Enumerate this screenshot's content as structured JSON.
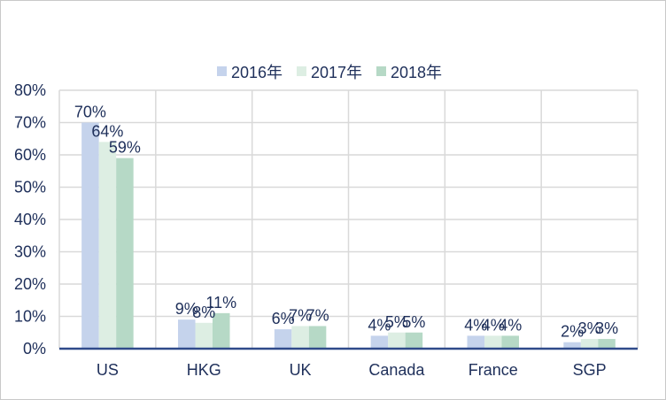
{
  "chart_data": {
    "type": "bar",
    "title": "",
    "xlabel": "",
    "ylabel": "",
    "categories": [
      "US",
      "HKG",
      "UK",
      "Canada",
      "France",
      "SGP"
    ],
    "series": [
      {
        "name": "2016年",
        "values": [
          0.7,
          0.09,
          0.06,
          0.04,
          0.04,
          0.02
        ],
        "labels": [
          "70%",
          "9%",
          "6%",
          "4%",
          "4%",
          "2%"
        ],
        "color": "#c5d3ec"
      },
      {
        "name": "2017年",
        "values": [
          0.64,
          0.08,
          0.07,
          0.05,
          0.04,
          0.03
        ],
        "labels": [
          "64%",
          "8%",
          "7%",
          "5%",
          "4%",
          "3%"
        ],
        "color": "#ddeee3"
      },
      {
        "name": "2018年",
        "values": [
          0.59,
          0.11,
          0.07,
          0.05,
          0.04,
          0.03
        ],
        "labels": [
          "59%",
          "11%",
          "7%",
          "5%",
          "4%",
          "3%"
        ],
        "color": "#b6d9c6"
      }
    ],
    "ylim": [
      0,
      0.8
    ],
    "yticks": [
      "0%",
      "10%",
      "20%",
      "30%",
      "40%",
      "50%",
      "60%",
      "70%",
      "80%"
    ],
    "grid": true,
    "legend_position": "top",
    "colors": {
      "axis": "#2f4a8a",
      "grid": "#d9d9d9",
      "text": "#1e2f5a"
    }
  }
}
